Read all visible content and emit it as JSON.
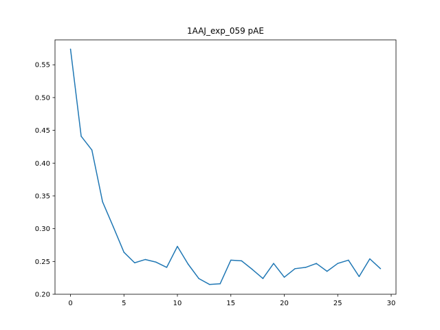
{
  "chart_data": {
    "type": "line",
    "title": "1AAJ_exp_059 pAE",
    "xlabel": "",
    "ylabel": "",
    "xlim": [
      -1.45,
      30.45
    ],
    "ylim": [
      0.2,
      0.588
    ],
    "xticks": [
      0,
      5,
      10,
      15,
      20,
      25,
      30
    ],
    "xtick_labels": [
      "0",
      "5",
      "10",
      "15",
      "20",
      "25",
      "30"
    ],
    "yticks": [
      0.2,
      0.25,
      0.3,
      0.35,
      0.4,
      0.45,
      0.5,
      0.55
    ],
    "ytick_labels": [
      "0.20",
      "0.25",
      "0.30",
      "0.35",
      "0.40",
      "0.45",
      "0.50",
      "0.55"
    ],
    "grid": false,
    "line_color": "#1f77b4",
    "series": [
      {
        "x": [
          0,
          1,
          2,
          3,
          4,
          5,
          6,
          7,
          8,
          9,
          10,
          11,
          12,
          13,
          14,
          15,
          16,
          17,
          18,
          19,
          20,
          21,
          22,
          23,
          24,
          25,
          26,
          27,
          28,
          29
        ],
        "values": [
          0.574,
          0.441,
          0.42,
          0.341,
          0.303,
          0.264,
          0.248,
          0.253,
          0.249,
          0.241,
          0.273,
          0.246,
          0.224,
          0.215,
          0.216,
          0.252,
          0.251,
          0.238,
          0.224,
          0.247,
          0.226,
          0.239,
          0.241,
          0.247,
          0.235,
          0.247,
          0.252,
          0.227,
          0.254,
          0.239
        ]
      }
    ]
  }
}
